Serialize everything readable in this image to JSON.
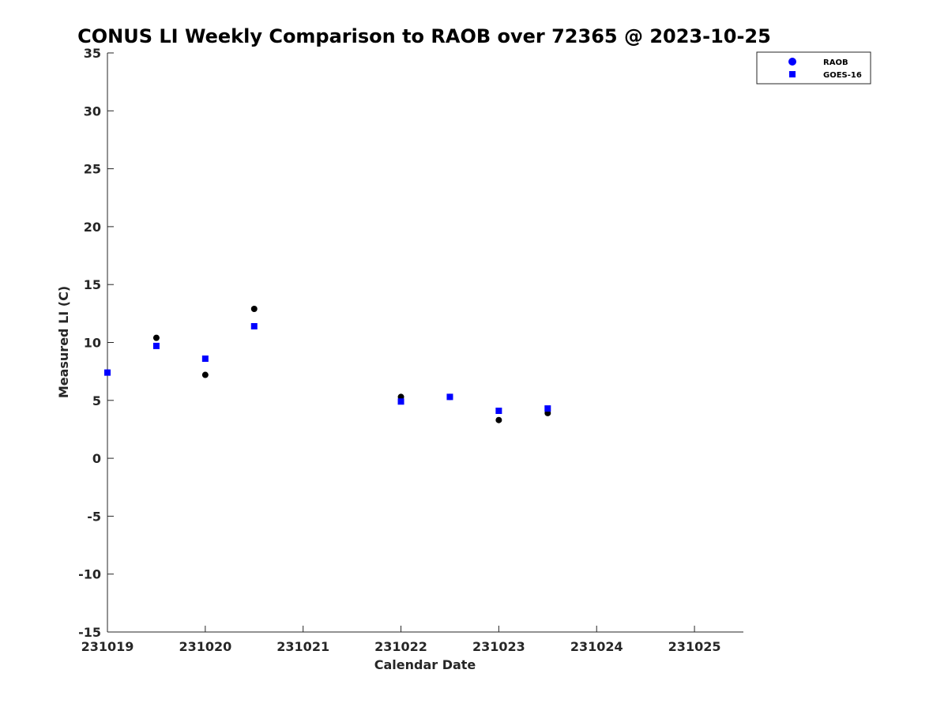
{
  "chart_data": {
    "type": "scatter",
    "title": "CONUS LI Weekly Comparison to RAOB over 72365 @ 2023-10-25",
    "xlabel": "Calendar Date",
    "ylabel": "Measured LI (C)",
    "xlim": [
      231019,
      231025.5
    ],
    "ylim": [
      -15,
      35
    ],
    "x_ticks": [
      231019,
      231020,
      231021,
      231022,
      231023,
      231024,
      231025
    ],
    "x_tick_labels": [
      "231019",
      "231020",
      "231021",
      "231022",
      "231023",
      "231024",
      "231025"
    ],
    "y_ticks": [
      -15,
      -10,
      -5,
      0,
      5,
      10,
      15,
      20,
      25,
      30,
      35
    ],
    "y_tick_labels": [
      "-15",
      "-10",
      "-5",
      "0",
      "5",
      "10",
      "15",
      "20",
      "25",
      "30",
      "35"
    ],
    "grid": false,
    "legend_position": "top-right",
    "series": [
      {
        "name": "RAOB",
        "marker": "circle",
        "color": "#000000",
        "legend_color": "#0000ff",
        "x": [
          231019,
          231019.5,
          231020,
          231020.5,
          231022,
          231022.5,
          231023,
          231023.5
        ],
        "y": [
          7.4,
          10.4,
          7.2,
          12.9,
          5.3,
          5.3,
          3.3,
          3.9
        ]
      },
      {
        "name": "GOES-16",
        "marker": "square",
        "color": "#0000ff",
        "legend_color": "#0000ff",
        "x": [
          231019,
          231019.5,
          231020,
          231020.5,
          231022,
          231022.5,
          231023,
          231023.5
        ],
        "y": [
          7.4,
          9.7,
          8.6,
          11.4,
          4.9,
          5.3,
          4.1,
          4.3
        ]
      }
    ]
  }
}
